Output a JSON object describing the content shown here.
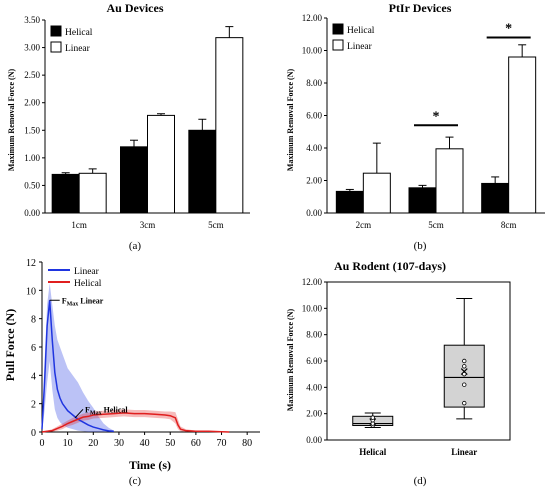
{
  "chart_data": [
    {
      "panel": "a",
      "type": "bar",
      "title": "Au Devices",
      "ylabel": "Maximum Removal Force (N)",
      "caption": "(a)",
      "categories": [
        "1cm",
        "3cm",
        "5cm"
      ],
      "ylim": [
        0,
        3.5
      ],
      "yticks": [
        "0.00",
        "0.50",
        "1.00",
        "1.50",
        "2.00",
        "2.50",
        "3.00",
        "3.50"
      ],
      "legend_position": "top-left",
      "series": [
        {
          "name": "Helical",
          "color": "#000000",
          "values": [
            0.7,
            1.2,
            1.5
          ],
          "errors": [
            0.03,
            0.12,
            0.2
          ]
        },
        {
          "name": "Linear",
          "color": "#ffffff",
          "values": [
            0.72,
            1.77,
            3.18
          ],
          "errors": [
            0.08,
            0.03,
            0.2
          ]
        }
      ]
    },
    {
      "panel": "b",
      "type": "bar",
      "title": "PtIr Devices",
      "ylabel": "Maximum Removal Force (N)",
      "caption": "(b)",
      "categories": [
        "2cm",
        "5cm",
        "8cm"
      ],
      "ylim": [
        0,
        12
      ],
      "yticks": [
        "0.00",
        "2.00",
        "4.00",
        "6.00",
        "8.00",
        "10.00",
        "12.00"
      ],
      "legend_position": "top-left",
      "series": [
        {
          "name": "Helical",
          "color": "#000000",
          "values": [
            1.33,
            1.55,
            1.82
          ],
          "errors": [
            0.12,
            0.15,
            0.4
          ]
        },
        {
          "name": "Linear",
          "color": "#ffffff",
          "values": [
            2.45,
            3.95,
            9.6
          ],
          "errors": [
            1.85,
            0.72,
            0.75
          ]
        }
      ],
      "significance": [
        {
          "category": "5cm",
          "y": 5.4,
          "label": "*"
        },
        {
          "category": "8cm",
          "y": 10.8,
          "label": "*"
        }
      ]
    },
    {
      "panel": "c",
      "type": "line",
      "xlabel": "Time (s)",
      "ylabel": "Pull Force (N)",
      "caption": "(c)",
      "xlim": [
        0,
        85
      ],
      "ylim": [
        0,
        12
      ],
      "xticks": [
        0,
        10,
        20,
        30,
        40,
        50,
        60,
        70,
        80
      ],
      "yticks": [
        0,
        2,
        4,
        6,
        8,
        10,
        12
      ],
      "legend_position": "top-left",
      "annotations": [
        {
          "base": "F",
          "sub": "Max",
          "rest": " Linear",
          "at": [
            3,
            9.3
          ]
        },
        {
          "base": "F",
          "sub": "Max",
          "rest": " Helical",
          "at": [
            16,
            1.6
          ]
        }
      ],
      "series": [
        {
          "name": "Linear",
          "color": "#1f35e0",
          "x": [
            0,
            1,
            2,
            3,
            4,
            5,
            6,
            7,
            8,
            10,
            12,
            14,
            16,
            18,
            20,
            22,
            24,
            26,
            28
          ],
          "y": [
            0.2,
            3.5,
            7.5,
            9.3,
            6.5,
            4.2,
            3.0,
            2.4,
            2.0,
            1.5,
            1.2,
            0.9,
            0.7,
            0.5,
            0.35,
            0.25,
            0.15,
            0.08,
            0.05
          ],
          "band_upper": [
            0.5,
            5.0,
            9.0,
            10.5,
            9.0,
            7.5,
            6.5,
            6.0,
            5.5,
            4.5,
            4.0,
            3.5,
            2.8,
            2.2,
            1.7,
            1.1,
            0.6,
            0.3,
            0.1
          ],
          "band_lower": [
            0,
            1.5,
            3.5,
            5.0,
            3.0,
            1.6,
            1.0,
            0.7,
            0.5,
            0.3,
            0.2,
            0.1,
            0.05,
            0,
            0,
            0,
            0,
            0,
            0
          ]
        },
        {
          "name": "Helical",
          "color": "#e01f1f",
          "x": [
            0,
            2,
            4,
            6,
            8,
            10,
            12,
            14,
            16,
            18,
            20,
            24,
            28,
            32,
            36,
            40,
            44,
            48,
            50,
            52,
            53,
            54,
            56,
            60,
            65,
            70,
            73
          ],
          "y": [
            0,
            0.05,
            0.1,
            0.25,
            0.4,
            0.6,
            0.75,
            0.9,
            1.05,
            1.1,
            1.2,
            1.25,
            1.3,
            1.35,
            1.3,
            1.3,
            1.25,
            1.2,
            1.15,
            1.0,
            0.5,
            0.2,
            0.1,
            0.05,
            0.05,
            0.02,
            0
          ],
          "band_upper": [
            0,
            0.1,
            0.2,
            0.4,
            0.6,
            0.8,
            1.0,
            1.15,
            1.3,
            1.35,
            1.45,
            1.5,
            1.55,
            1.6,
            1.55,
            1.55,
            1.5,
            1.45,
            1.45,
            1.4,
            0.9,
            0.4,
            0.2,
            0.1,
            0.08,
            0.05,
            0
          ],
          "band_lower": [
            0,
            0,
            0.02,
            0.1,
            0.2,
            0.4,
            0.5,
            0.65,
            0.8,
            0.85,
            0.95,
            1.0,
            1.05,
            1.1,
            1.05,
            1.05,
            1.0,
            0.95,
            0.9,
            0.6,
            0.2,
            0.05,
            0,
            0,
            0,
            0,
            0
          ]
        }
      ]
    },
    {
      "panel": "d",
      "type": "box",
      "title": "Au Rodent (107-days)",
      "ylabel": "Maximum Removal Force (N)",
      "caption": "(d)",
      "categories": [
        "Helical",
        "Linear"
      ],
      "ylim": [
        0,
        12
      ],
      "yticks": [
        "0.00",
        "2.00",
        "4.00",
        "6.00",
        "8.00",
        "10.00",
        "12.00"
      ],
      "boxes": [
        {
          "category": "Helical",
          "min": 0.95,
          "q1": 1.1,
          "median": 1.25,
          "q3": 1.8,
          "max": 2.05,
          "mean": 1.4,
          "points": [
            1.1,
            1.25,
            1.5,
            1.7
          ]
        },
        {
          "category": "Linear",
          "min": 1.6,
          "q1": 2.5,
          "median": 4.75,
          "q3": 7.2,
          "max": 10.75,
          "mean": 5.2,
          "points": [
            2.8,
            4.2,
            5.0,
            5.6,
            6.0
          ]
        }
      ],
      "box_fill": "#d3d3d3"
    }
  ]
}
